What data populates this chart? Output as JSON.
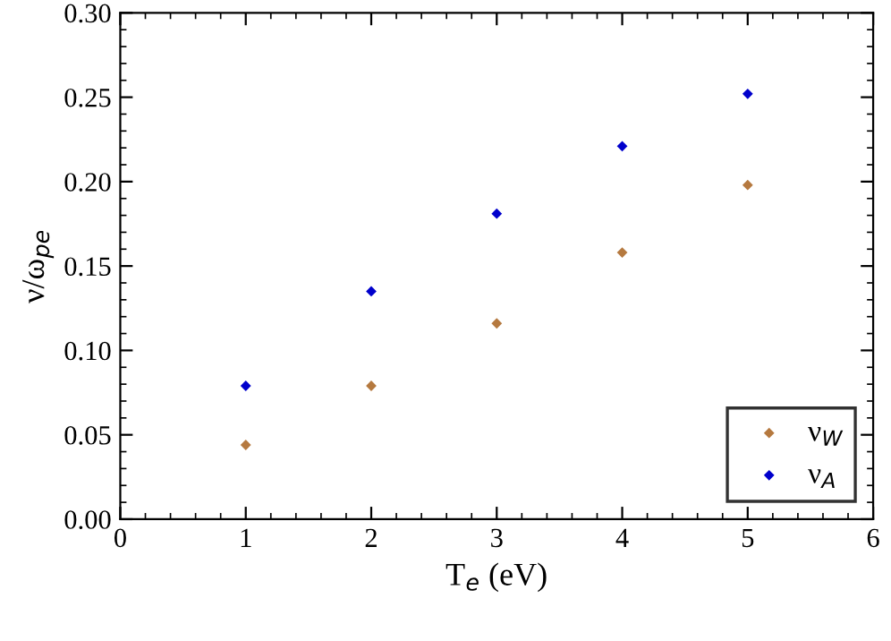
{
  "chart_data": {
    "type": "scatter",
    "xlabel": "T$_{e}$ (eV)",
    "ylabel": "ν/ω$_{pe}$",
    "x": [
      1,
      2,
      3,
      4,
      5
    ],
    "series": [
      {
        "name": "ν$_{W}$",
        "color": "#b5793f",
        "values": [
          0.044,
          0.079,
          0.116,
          0.158,
          0.198
        ]
      },
      {
        "name": "ν$_{A}$",
        "color": "#0000cc",
        "values": [
          0.079,
          0.135,
          0.181,
          0.221,
          0.252
        ]
      }
    ],
    "xlim": [
      0,
      6
    ],
    "xticks": [
      0,
      1,
      2,
      3,
      4,
      5,
      6
    ],
    "ylim": [
      0,
      0.3
    ],
    "yticks": [
      {
        "value": 0,
        "label": "0.00"
      },
      {
        "value": 0.05,
        "label": "0.05"
      },
      {
        "value": 0.1,
        "label": "0.10"
      },
      {
        "value": 0.15,
        "label": "0.15"
      },
      {
        "value": 0.2,
        "label": "0.20"
      },
      {
        "value": 0.25,
        "label": "0.25"
      },
      {
        "value": 0.3,
        "label": "0.30"
      }
    ],
    "marker": "diamond",
    "grid": false,
    "legend": "bottom right"
  }
}
